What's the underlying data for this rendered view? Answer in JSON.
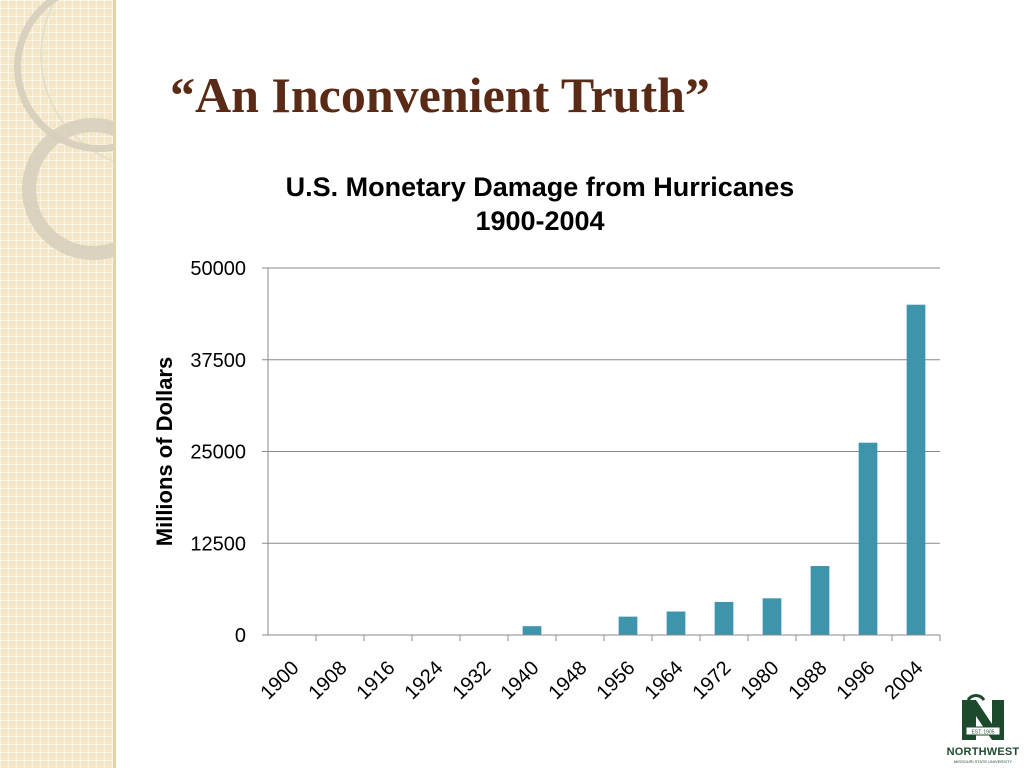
{
  "slide": {
    "title": "“An Inconvenient Truth”"
  },
  "logo": {
    "name": "NORTHWEST",
    "subtitle": "MISSOURI STATE UNIVERSITY",
    "est": "EST. 1905"
  },
  "colors": {
    "bar": "#3e94ab",
    "title": "#5a2a16",
    "grid": "#8a8a8a",
    "logo_green": "#1d4a2c"
  },
  "chart_data": {
    "type": "bar",
    "title": "U.S. Monetary Damage from Hurricanes",
    "subtitle": "1900-2004",
    "ylabel": "Millions of Dollars",
    "xlabel": "",
    "ylim": [
      0,
      50000
    ],
    "yticks": [
      "0",
      "12500",
      "25000",
      "37500",
      "50000"
    ],
    "grid": true,
    "legend": "none",
    "categories": [
      "1900",
      "1908",
      "1916",
      "1924",
      "1932",
      "1940",
      "1948",
      "1956",
      "1964",
      "1972",
      "1980",
      "1988",
      "1996",
      "2004"
    ],
    "values": [
      0,
      0,
      0,
      0,
      0,
      1200,
      0,
      2500,
      3200,
      4500,
      5000,
      9400,
      26200,
      45000
    ]
  }
}
